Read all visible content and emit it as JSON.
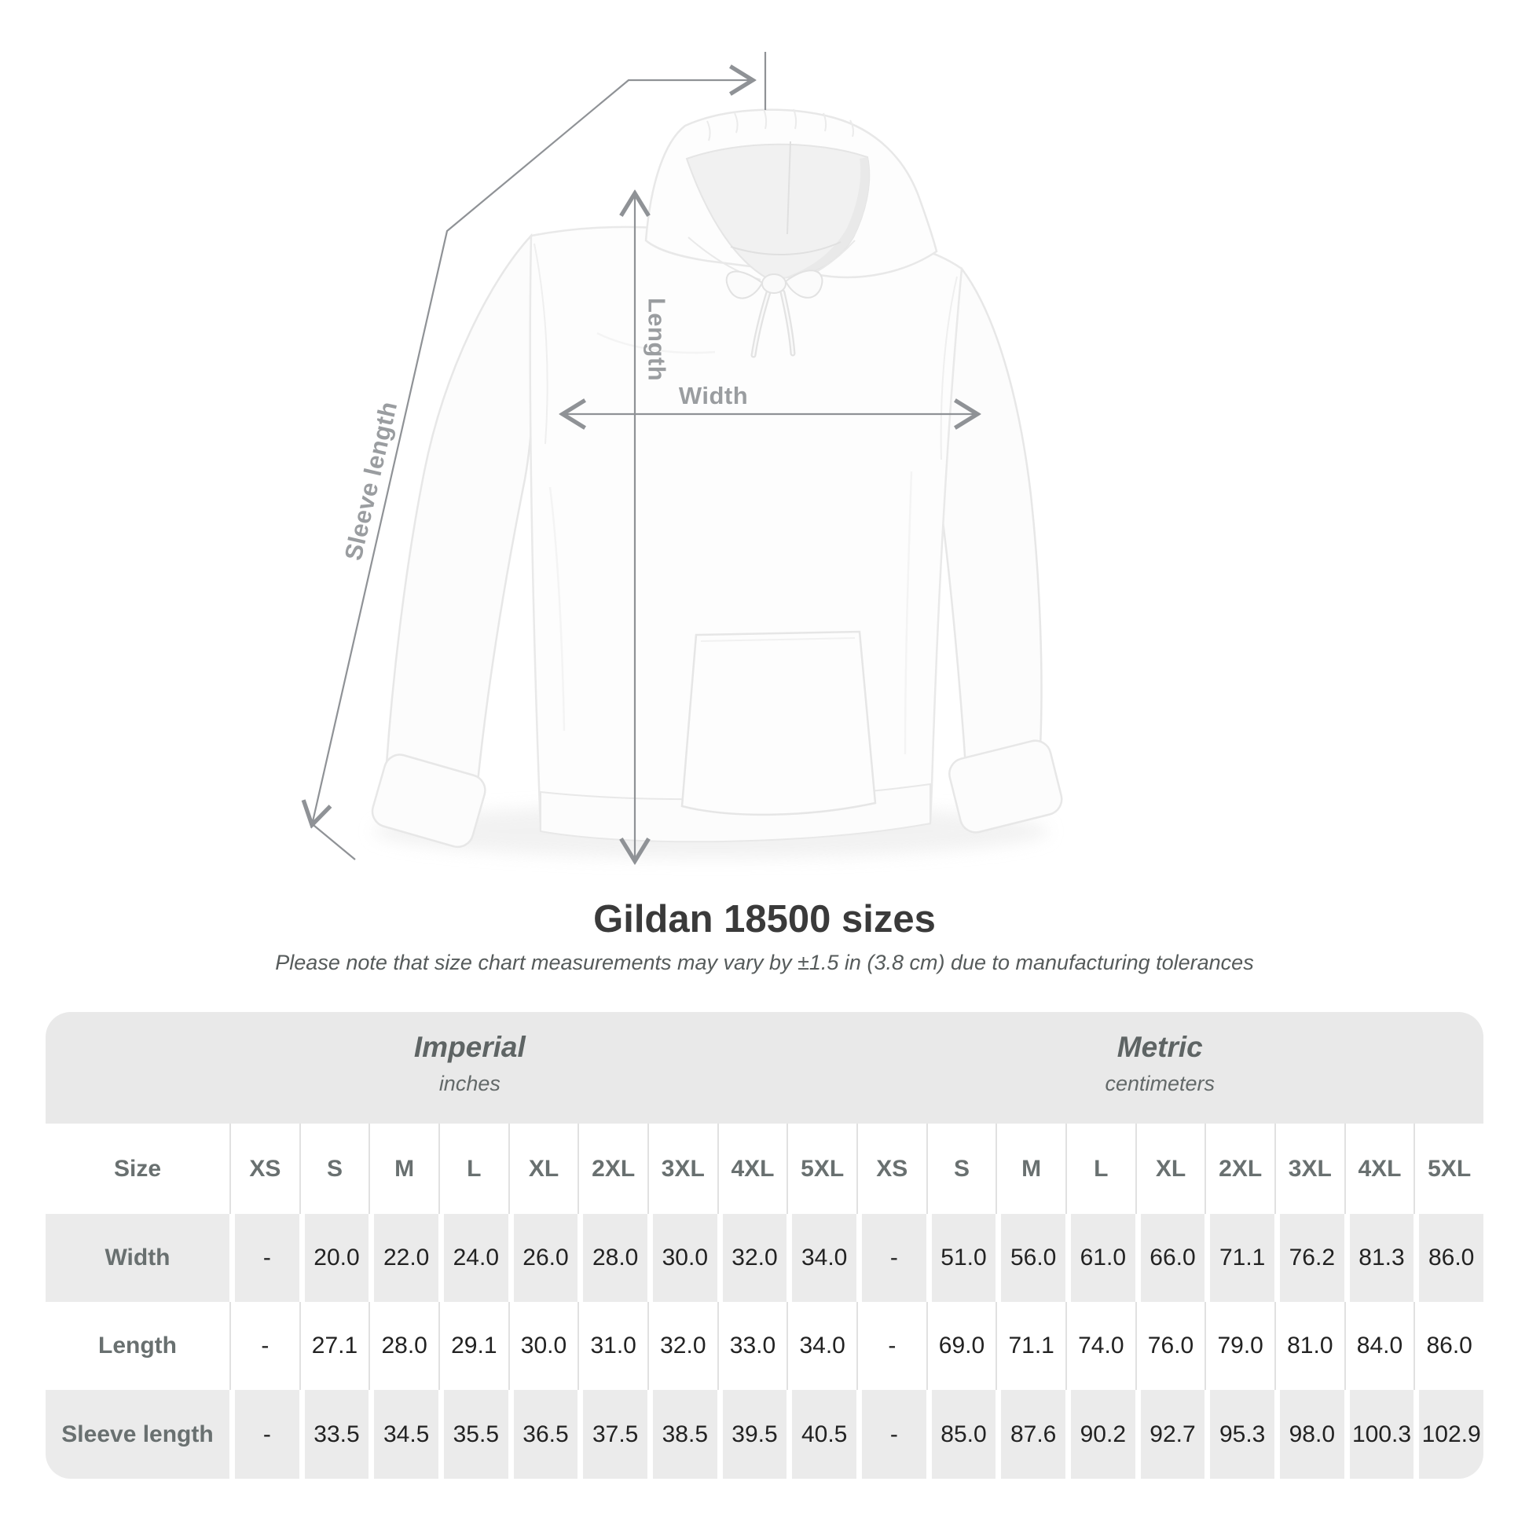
{
  "diagram": {
    "labels": {
      "length": "Length",
      "width": "Width",
      "sleeve_length": "Sleeve length"
    }
  },
  "title": "Gildan 18500 sizes",
  "subtitle": "Please note that size chart measurements may vary by ±1.5 in (3.8 cm) due to manufacturing tolerances",
  "table": {
    "unit_groups": [
      {
        "label": "Imperial",
        "sublabel": "inches"
      },
      {
        "label": "Metric",
        "sublabel": "centimeters"
      }
    ],
    "size_header": "Size",
    "sizes": [
      "XS",
      "S",
      "M",
      "L",
      "XL",
      "2XL",
      "3XL",
      "4XL",
      "5XL"
    ],
    "rows": [
      {
        "label": "Width",
        "imperial": [
          "-",
          "20.0",
          "22.0",
          "24.0",
          "26.0",
          "28.0",
          "30.0",
          "32.0",
          "34.0"
        ],
        "metric": [
          "-",
          "51.0",
          "56.0",
          "61.0",
          "66.0",
          "71.1",
          "76.2",
          "81.3",
          "86.0"
        ]
      },
      {
        "label": "Length",
        "imperial": [
          "-",
          "27.1",
          "28.0",
          "29.1",
          "30.0",
          "31.0",
          "32.0",
          "33.0",
          "34.0"
        ],
        "metric": [
          "-",
          "69.0",
          "71.1",
          "74.0",
          "76.0",
          "79.0",
          "81.0",
          "84.0",
          "86.0"
        ]
      },
      {
        "label": "Sleeve length",
        "imperial": [
          "-",
          "33.5",
          "34.5",
          "35.5",
          "36.5",
          "37.5",
          "38.5",
          "39.5",
          "40.5"
        ],
        "metric": [
          "-",
          "85.0",
          "87.6",
          "90.2",
          "92.7",
          "95.3",
          "98.0",
          "100.3",
          "102.9"
        ]
      }
    ]
  },
  "chart_data": {
    "type": "table",
    "title": "Gildan 18500 sizes",
    "note": "Measurements may vary by ±1.5 in (3.8 cm) due to manufacturing tolerances",
    "measured_dimensions": [
      "Width",
      "Length",
      "Sleeve length"
    ],
    "sizes": [
      "XS",
      "S",
      "M",
      "L",
      "XL",
      "2XL",
      "3XL",
      "4XL",
      "5XL"
    ],
    "imperial_inches": {
      "Width": [
        null,
        20.0,
        22.0,
        24.0,
        26.0,
        28.0,
        30.0,
        32.0,
        34.0
      ],
      "Length": [
        null,
        27.1,
        28.0,
        29.1,
        30.0,
        31.0,
        32.0,
        33.0,
        34.0
      ],
      "Sleeve length": [
        null,
        33.5,
        34.5,
        35.5,
        36.5,
        37.5,
        38.5,
        39.5,
        40.5
      ]
    },
    "metric_centimeters": {
      "Width": [
        null,
        51.0,
        56.0,
        61.0,
        66.0,
        71.1,
        76.2,
        81.3,
        86.0
      ],
      "Length": [
        null,
        69.0,
        71.1,
        74.0,
        76.0,
        79.0,
        81.0,
        84.0,
        86.0
      ],
      "Sleeve length": [
        null,
        85.0,
        87.6,
        90.2,
        92.7,
        95.3,
        98.0,
        100.3,
        102.9
      ]
    }
  },
  "colors": {
    "annotation_gray": "#8f9296",
    "band_background": "#e9e9e9",
    "row_gray": "#ebebeb",
    "title_text": "#3a3a3a",
    "header_text": "#5e6464",
    "value_text": "#222222"
  }
}
